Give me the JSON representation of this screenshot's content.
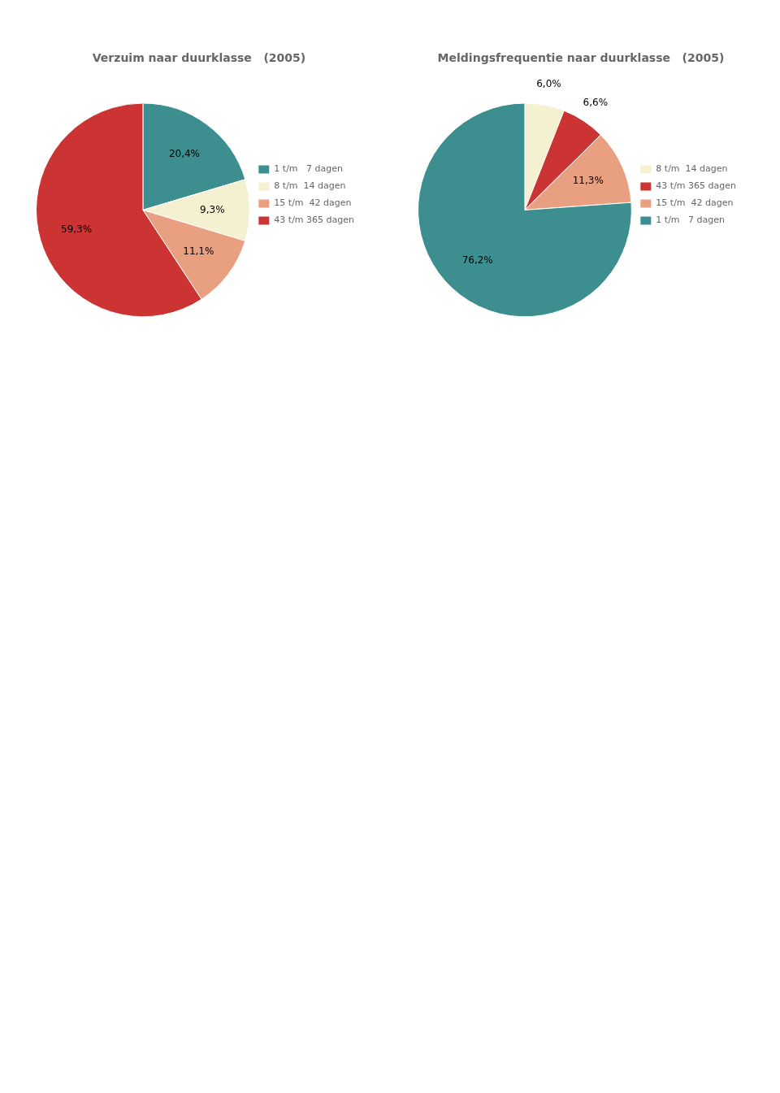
{
  "chart_data": [
    {
      "type": "pie",
      "title": "Verzuim naar duurklasse   (2005)",
      "categories": [
        "1 t/m   7 dagen",
        "8 t/m  14 dagen",
        "15 t/m  42 dagen",
        "43 t/m 365 dagen"
      ],
      "values": [
        20.4,
        9.3,
        11.1,
        59.3
      ],
      "value_labels": [
        "20,4%",
        "9,3%",
        "11,1%",
        "59,3%"
      ],
      "colors": [
        "#3d8f8f",
        "#f5f0d0",
        "#e8a080",
        "#cc3333"
      ],
      "legend": "right",
      "data_labels": true
    },
    {
      "type": "pie",
      "title": "Meldingsfrequentie naar duurklasse   (2005)",
      "categories": [
        "8 t/m  14 dagen",
        "43 t/m 365 dagen",
        "15 t/m  42 dagen",
        "1 t/m   7 dagen"
      ],
      "values": [
        6.0,
        6.6,
        11.3,
        76.2
      ],
      "value_labels": [
        "6,0%",
        "6,6%",
        "11,3%",
        "76,2%"
      ],
      "colors": [
        "#f5f0d0",
        "#cc3333",
        "#e8a080",
        "#3d8f8f"
      ],
      "legend": "right",
      "data_labels": true
    }
  ]
}
